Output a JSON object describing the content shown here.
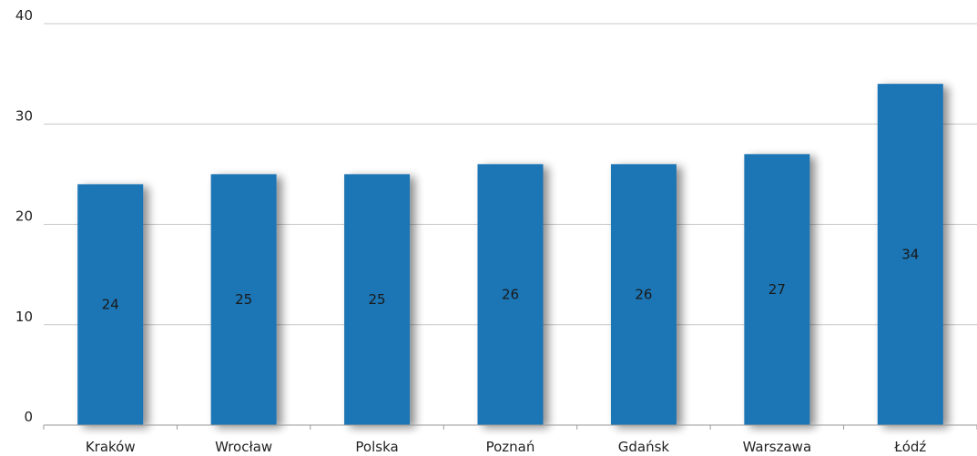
{
  "chart_data": {
    "type": "bar",
    "categories": [
      "Kraków",
      "Wrocław",
      "Polska",
      "Poznań",
      "Gdańsk",
      "Warszawa",
      "Łódź"
    ],
    "values": [
      24,
      25,
      25,
      26,
      26,
      27,
      34
    ],
    "data_labels": [
      "24",
      "25",
      "25",
      "26",
      "26",
      "27",
      "34"
    ],
    "ylim": [
      0,
      40
    ],
    "yticks": [
      0,
      10,
      20,
      30,
      40
    ],
    "grid": true,
    "legend": "none",
    "colors": {
      "bar": "#1f74b4",
      "grid": "#c7c7c7",
      "axis": "#9a9a9a"
    }
  }
}
